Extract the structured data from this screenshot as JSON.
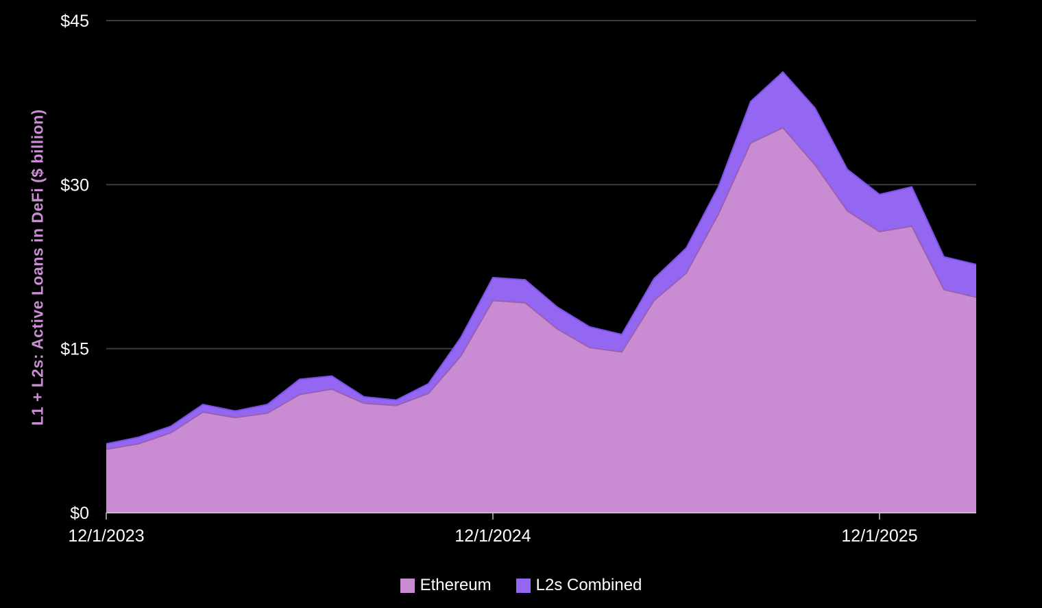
{
  "chart_data": {
    "type": "area",
    "stacked": true,
    "title": "",
    "xlabel": "",
    "ylabel": "L1 + L2s: Active Loans in DeFi ($ billion)",
    "ylim": [
      0,
      45
    ],
    "grid": "horizontal-only",
    "legend_position": "bottom-center",
    "background_color": "#000000",
    "gridline_color": "#3d3d3d",
    "axis_line_color": "#c2c2c2",
    "tick_label_color": "#ffffff",
    "ylabel_color": "#cb8dd4",
    "y_ticks": [
      {
        "value": 0,
        "label": "$0"
      },
      {
        "value": 15,
        "label": "$15"
      },
      {
        "value": 30,
        "label": "$30"
      },
      {
        "value": 45,
        "label": "$45"
      }
    ],
    "x_ticks": [
      {
        "month_index": 0,
        "label": "12/1/2023"
      },
      {
        "month_index": 12,
        "label": "12/1/2024"
      },
      {
        "month_index": 24,
        "label": "12/1/2025"
      }
    ],
    "months": [
      "2023-12",
      "2024-01",
      "2024-02",
      "2024-03",
      "2024-04",
      "2024-05",
      "2024-06",
      "2024-07",
      "2024-08",
      "2024-09",
      "2024-10",
      "2024-11",
      "2024-12",
      "2025-01",
      "2025-02",
      "2025-03",
      "2025-04",
      "2025-05",
      "2025-06",
      "2025-07",
      "2025-08",
      "2025-09",
      "2025-10",
      "2025-11",
      "2025-12",
      "2026-01",
      "2026-02",
      "2026-03"
    ],
    "series": [
      {
        "name": "Ethereum",
        "color": "#c98cd2",
        "edge_color": "#9a5fae",
        "values": [
          5.8,
          6.3,
          7.3,
          9.2,
          8.7,
          9.1,
          10.8,
          11.3,
          10.0,
          9.8,
          10.9,
          14.3,
          19.4,
          19.2,
          16.8,
          15.1,
          14.7,
          19.4,
          21.9,
          27.3,
          33.8,
          35.2,
          31.8,
          27.6,
          25.7,
          26.2,
          20.4,
          19.7
        ]
      },
      {
        "name": "L2s Combined",
        "color": "#9467f3",
        "edge_color": "#7b50e6",
        "values": [
          0.5,
          0.6,
          0.6,
          0.7,
          0.6,
          0.8,
          1.4,
          1.2,
          0.6,
          0.5,
          0.9,
          1.7,
          2.1,
          2.1,
          2.0,
          1.9,
          1.6,
          2.0,
          2.3,
          2.5,
          3.8,
          5.1,
          5.2,
          3.8,
          3.4,
          3.6,
          3.0,
          3.0
        ]
      }
    ]
  }
}
